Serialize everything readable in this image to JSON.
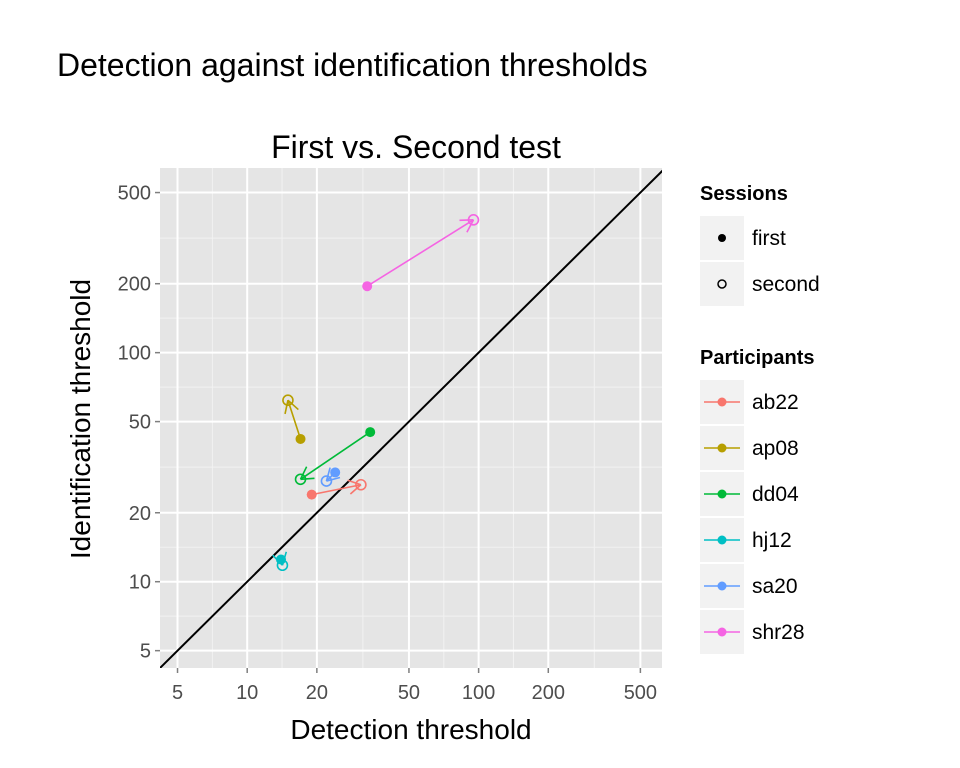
{
  "title": "Detection against identification thresholds",
  "chart_data": {
    "type": "scatter",
    "subtitle": "First vs. Second test",
    "xlabel": "Detection threshold",
    "ylabel": "Identification threshold",
    "xscale": "log10",
    "yscale": "log10",
    "xlim": [
      4.2,
      620
    ],
    "ylim": [
      4.2,
      640
    ],
    "xticks": [
      5,
      10,
      20,
      50,
      100,
      200,
      500
    ],
    "yticks": [
      5,
      10,
      20,
      50,
      100,
      200,
      500
    ],
    "grid": true,
    "reference_line": "y = x",
    "legend_position": "right",
    "legends": [
      {
        "title": "Sessions",
        "entries": [
          "first",
          "second"
        ]
      },
      {
        "title": "Participants",
        "entries": [
          "ab22",
          "ap08",
          "dd04",
          "hj12",
          "sa20",
          "shr28"
        ]
      }
    ],
    "series": [
      {
        "name": "ab22",
        "color": "#F8766D",
        "first": [
          19,
          24
        ],
        "second": [
          31,
          26.5
        ]
      },
      {
        "name": "ap08",
        "color": "#B79F00",
        "first": [
          17,
          42
        ],
        "second": [
          15,
          62
        ]
      },
      {
        "name": "dd04",
        "color": "#00BA38",
        "first": [
          34,
          45
        ],
        "second": [
          17,
          28
        ]
      },
      {
        "name": "hj12",
        "color": "#00BFC4",
        "first": [
          14,
          12.5
        ],
        "second": [
          14.2,
          11.8
        ]
      },
      {
        "name": "sa20",
        "color": "#619CFF",
        "first": [
          24,
          30
        ],
        "second": [
          22,
          27.5
        ]
      },
      {
        "name": "shr28",
        "color": "#F564E3",
        "first": [
          33,
          195
        ],
        "second": [
          95,
          380
        ]
      }
    ]
  }
}
